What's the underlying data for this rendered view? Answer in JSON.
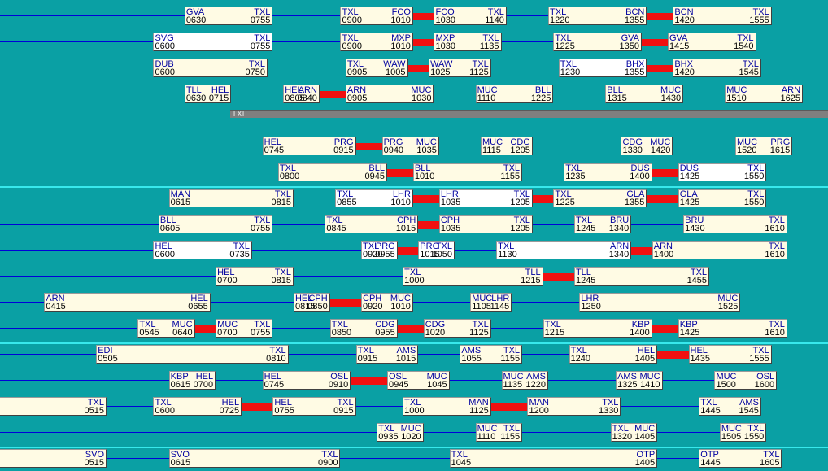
{
  "colors": {
    "background": "#0aa0a4",
    "segment": "#fffbe4",
    "segment_selected": "#ffffff",
    "turnaround": "#f01010",
    "connector": "#0000d8",
    "separator": "#38e8ec",
    "band": "#7f7f7f"
  },
  "band": {
    "label": "TXL"
  },
  "rows": [
    {
      "segments": [
        {
          "dep": "GVA",
          "dt": "0630",
          "arr": "TXL",
          "at": "0755"
        },
        {
          "dep": "TXL",
          "dt": "0900",
          "arr": "FCO",
          "at": "1010"
        },
        {
          "dep": "FCO",
          "dt": "1030",
          "arr": "TXL",
          "at": "1140"
        },
        {
          "dep": "TXL",
          "dt": "1220",
          "arr": "BCN",
          "at": "1355"
        },
        {
          "dep": "BCN",
          "dt": "1420",
          "arr": "TXL",
          "at": "1555"
        }
      ]
    },
    {
      "segments": [
        {
          "dep": "SVG",
          "dt": "0600",
          "arr": "TXL",
          "at": "0755",
          "sel": true
        },
        {
          "dep": "TXL",
          "dt": "0900",
          "arr": "MXP",
          "at": "1010"
        },
        {
          "dep": "MXP",
          "dt": "1030",
          "arr": "TXL",
          "at": "1135"
        },
        {
          "dep": "TXL",
          "dt": "1225",
          "arr": "GVA",
          "at": "1350"
        },
        {
          "dep": "GVA",
          "dt": "1415",
          "arr": "TXL",
          "at": "1540"
        }
      ]
    },
    {
      "segments": [
        {
          "dep": "DUB",
          "dt": "0600",
          "arr": "TXL",
          "at": "0750"
        },
        {
          "dep": "TXL",
          "dt": "0905",
          "arr": "WAW",
          "at": "1005"
        },
        {
          "dep": "WAW",
          "dt": "1025",
          "arr": "TXL",
          "at": "1125"
        },
        {
          "dep": "TXL",
          "dt": "1230",
          "arr": "BHX",
          "at": "1355",
          "sel": true
        },
        {
          "dep": "BHX",
          "dt": "1420",
          "arr": "TXL",
          "at": "1545"
        }
      ]
    },
    {
      "segments": [
        {
          "dep": "TLL",
          "dt": "0630",
          "arr": "HEL",
          "at": "0715"
        },
        {
          "dep": "HEL",
          "dt": "0805",
          "arr": "ARN",
          "at": "0840"
        },
        {
          "dep": "ARN",
          "dt": "0905",
          "arr": "MUC",
          "at": "1030"
        },
        {
          "dep": "MUC",
          "dt": "1110",
          "arr": "BLL",
          "at": "1225"
        },
        {
          "dep": "BLL",
          "dt": "1315",
          "arr": "MUC",
          "at": "1430"
        },
        {
          "dep": "MUC",
          "dt": "1510",
          "arr": "ARN",
          "at": "1625"
        }
      ]
    },
    {
      "segments": []
    },
    {
      "segments": [
        {
          "dep": "HEL",
          "dt": "0745",
          "arr": "PRG",
          "at": "0915"
        },
        {
          "dep": "PRG",
          "dt": "0940",
          "arr": "MUC",
          "at": "1035"
        },
        {
          "dep": "MUC",
          "dt": "1115",
          "arr": "CDG",
          "at": "1205"
        },
        {
          "dep": "CDG",
          "dt": "1330",
          "arr": "MUC",
          "at": "1420"
        },
        {
          "dep": "MUC",
          "dt": "1520",
          "arr": "PRG",
          "at": "1615"
        }
      ]
    },
    {
      "segments": [
        {
          "dep": "TXL",
          "dt": "0800",
          "arr": "BLL",
          "at": "0945"
        },
        {
          "dep": "BLL",
          "dt": "1010",
          "arr": "TXL",
          "at": "1155"
        },
        {
          "dep": "TXL",
          "dt": "1235",
          "arr": "DUS",
          "at": "1400"
        },
        {
          "dep": "DUS",
          "dt": "1425",
          "arr": "TXL",
          "at": "1550",
          "sel": true
        }
      ]
    },
    {
      "segments": [
        {
          "dep": "MAN",
          "dt": "0615",
          "arr": "TXL",
          "at": "0815"
        },
        {
          "dep": "TXL",
          "dt": "0855",
          "arr": "LHR",
          "at": "1010",
          "sel": true
        },
        {
          "dep": "LHR",
          "dt": "1035",
          "arr": "TXL",
          "at": "1205",
          "sel": true
        },
        {
          "dep": "TXL",
          "dt": "1225",
          "arr": "GLA",
          "at": "1355"
        },
        {
          "dep": "GLA",
          "dt": "1425",
          "arr": "TXL",
          "at": "1550"
        }
      ]
    },
    {
      "segments": [
        {
          "dep": "BLL",
          "dt": "0605",
          "arr": "TXL",
          "at": "0755"
        },
        {
          "dep": "TXL",
          "dt": "0845",
          "arr": "CPH",
          "at": "1015"
        },
        {
          "dep": "CPH",
          "dt": "1035",
          "arr": "TXL",
          "at": "1205"
        },
        {
          "dep": "TXL",
          "dt": "1245",
          "arr": "BRU",
          "at": "1340"
        },
        {
          "dep": "BRU",
          "dt": "1430",
          "arr": "TXL",
          "at": "1610"
        }
      ]
    },
    {
      "segments": [
        {
          "dep": "HEL",
          "dt": "0600",
          "arr": "TXL",
          "at": "0735",
          "sel": true
        },
        {
          "dep": "TXL",
          "dt": "0920",
          "arr": "PRG",
          "at": "0955",
          "sel": true
        },
        {
          "dep": "PRG",
          "dt": "1015",
          "arr": "TXL",
          "at": "1050",
          "sel": true
        },
        {
          "dep": "TXL",
          "dt": "1130",
          "arr": "ARN",
          "at": "1340",
          "sel": true
        },
        {
          "dep": "ARN",
          "dt": "1400",
          "arr": "TXL",
          "at": "1610"
        }
      ]
    },
    {
      "segments": [
        {
          "dep": "HEL",
          "dt": "0700",
          "arr": "TXL",
          "at": "0815"
        },
        {
          "dep": "TXL",
          "dt": "1000",
          "arr": "TLL",
          "at": "1215"
        },
        {
          "dep": "TLL",
          "dt": "1245",
          "arr": "TXL",
          "at": "1455"
        }
      ]
    },
    {
      "segments": [
        {
          "dep": "ARN",
          "dt": "0415",
          "arr": "HEL",
          "at": "0655"
        },
        {
          "dep": "HEL",
          "dt": "0815",
          "arr": "CPH",
          "at": "0850"
        },
        {
          "dep": "CPH",
          "dt": "0920",
          "arr": "MUC",
          "at": "1010"
        },
        {
          "dep": "MUC",
          "dt": "1105",
          "arr": "LHR",
          "at": "1145"
        },
        {
          "dep": "LHR",
          "dt": "1250",
          "arr": "MUC",
          "at": "1525"
        }
      ]
    },
    {
      "segments": [
        {
          "dep": "TXL",
          "dt": "0545",
          "arr": "MUC",
          "at": "0640"
        },
        {
          "dep": "MUC",
          "dt": "0700",
          "arr": "TXL",
          "at": "0755"
        },
        {
          "dep": "TXL",
          "dt": "0850",
          "arr": "CDG",
          "at": "0955"
        },
        {
          "dep": "CDG",
          "dt": "1020",
          "arr": "TXL",
          "at": "1125"
        },
        {
          "dep": "TXL",
          "dt": "1215",
          "arr": "KBP",
          "at": "1400"
        },
        {
          "dep": "KBP",
          "dt": "1425",
          "arr": "TXL",
          "at": "1610"
        }
      ]
    },
    {
      "segments": [
        {
          "dep": "EDI",
          "dt": "0505",
          "arr": "TXL",
          "at": "0810"
        },
        {
          "dep": "TXL",
          "dt": "0915",
          "arr": "AMS",
          "at": "1015"
        },
        {
          "dep": "AMS",
          "dt": "1055",
          "arr": "TXL",
          "at": "1155"
        },
        {
          "dep": "TXL",
          "dt": "1240",
          "arr": "HEL",
          "at": "1405"
        },
        {
          "dep": "HEL",
          "dt": "1435",
          "arr": "TXL",
          "at": "1555"
        }
      ]
    },
    {
      "segments": [
        {
          "dep": "KBP",
          "dt": "0615",
          "arr": "HEL",
          "at": "0700"
        },
        {
          "dep": "HEL",
          "dt": "0745",
          "arr": "OSL",
          "at": "0910"
        },
        {
          "dep": "OSL",
          "dt": "0945",
          "arr": "MUC",
          "at": "1045"
        },
        {
          "dep": "MUC",
          "dt": "1135",
          "arr": "AMS",
          "at": "1220"
        },
        {
          "dep": "AMS",
          "dt": "1325",
          "arr": "MUC",
          "at": "1410"
        },
        {
          "dep": "MUC",
          "dt": "1500",
          "arr": "OSL",
          "at": "1600"
        }
      ]
    },
    {
      "segments": [
        {
          "dep": "",
          "dt": "",
          "arr": "TXL",
          "at": "0515"
        },
        {
          "dep": "TXL",
          "dt": "0600",
          "arr": "HEL",
          "at": "0725"
        },
        {
          "dep": "HEL",
          "dt": "0755",
          "arr": "TXL",
          "at": "0915"
        },
        {
          "dep": "TXL",
          "dt": "1000",
          "arr": "MAN",
          "at": "1125"
        },
        {
          "dep": "MAN",
          "dt": "1200",
          "arr": "TXL",
          "at": "1330"
        },
        {
          "dep": "TXL",
          "dt": "1445",
          "arr": "AMS",
          "at": "1545"
        }
      ]
    },
    {
      "segments": [
        {
          "dep": "TXL",
          "dt": "0935",
          "arr": "MUC",
          "at": "1020"
        },
        {
          "dep": "MUC",
          "dt": "1110",
          "arr": "TXL",
          "at": "1155"
        },
        {
          "dep": "TXL",
          "dt": "1320",
          "arr": "MUC",
          "at": "1405"
        },
        {
          "dep": "MUC",
          "dt": "1505",
          "arr": "TXL",
          "at": "1550"
        }
      ]
    },
    {
      "segments": [
        {
          "dep": "",
          "dt": "",
          "arr": "SVO",
          "at": "0515"
        },
        {
          "dep": "SVO",
          "dt": "0615",
          "arr": "TXL",
          "at": "0900"
        },
        {
          "dep": "TXL",
          "dt": "1045",
          "arr": "OTP",
          "at": "1405"
        },
        {
          "dep": "OTP",
          "dt": "1445",
          "arr": "TXL",
          "at": "1605"
        }
      ]
    }
  ]
}
